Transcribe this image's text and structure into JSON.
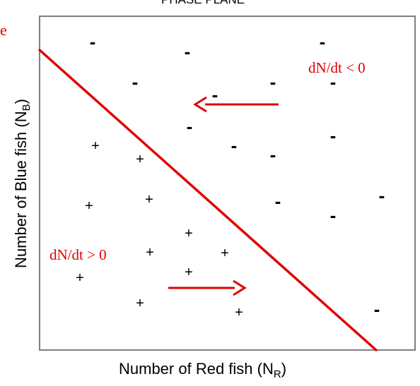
{
  "header": {
    "title": "PHASE PLANE",
    "cut_left_text": "e"
  },
  "axes": {
    "y_label": "Number of Blue fish (N",
    "y_sub": "B",
    "y_close": ")",
    "x_label": "Number of Red fish (N",
    "x_sub": "R",
    "x_close": ")"
  },
  "regions": {
    "negative_label": "dN/dt < 0",
    "positive_label": "dN/dt > 0"
  },
  "symbols": {
    "plus": "+",
    "minus": "-"
  },
  "colors": {
    "accent": "#e00000",
    "frame": "#7f7f7f",
    "text": "#000000"
  }
}
